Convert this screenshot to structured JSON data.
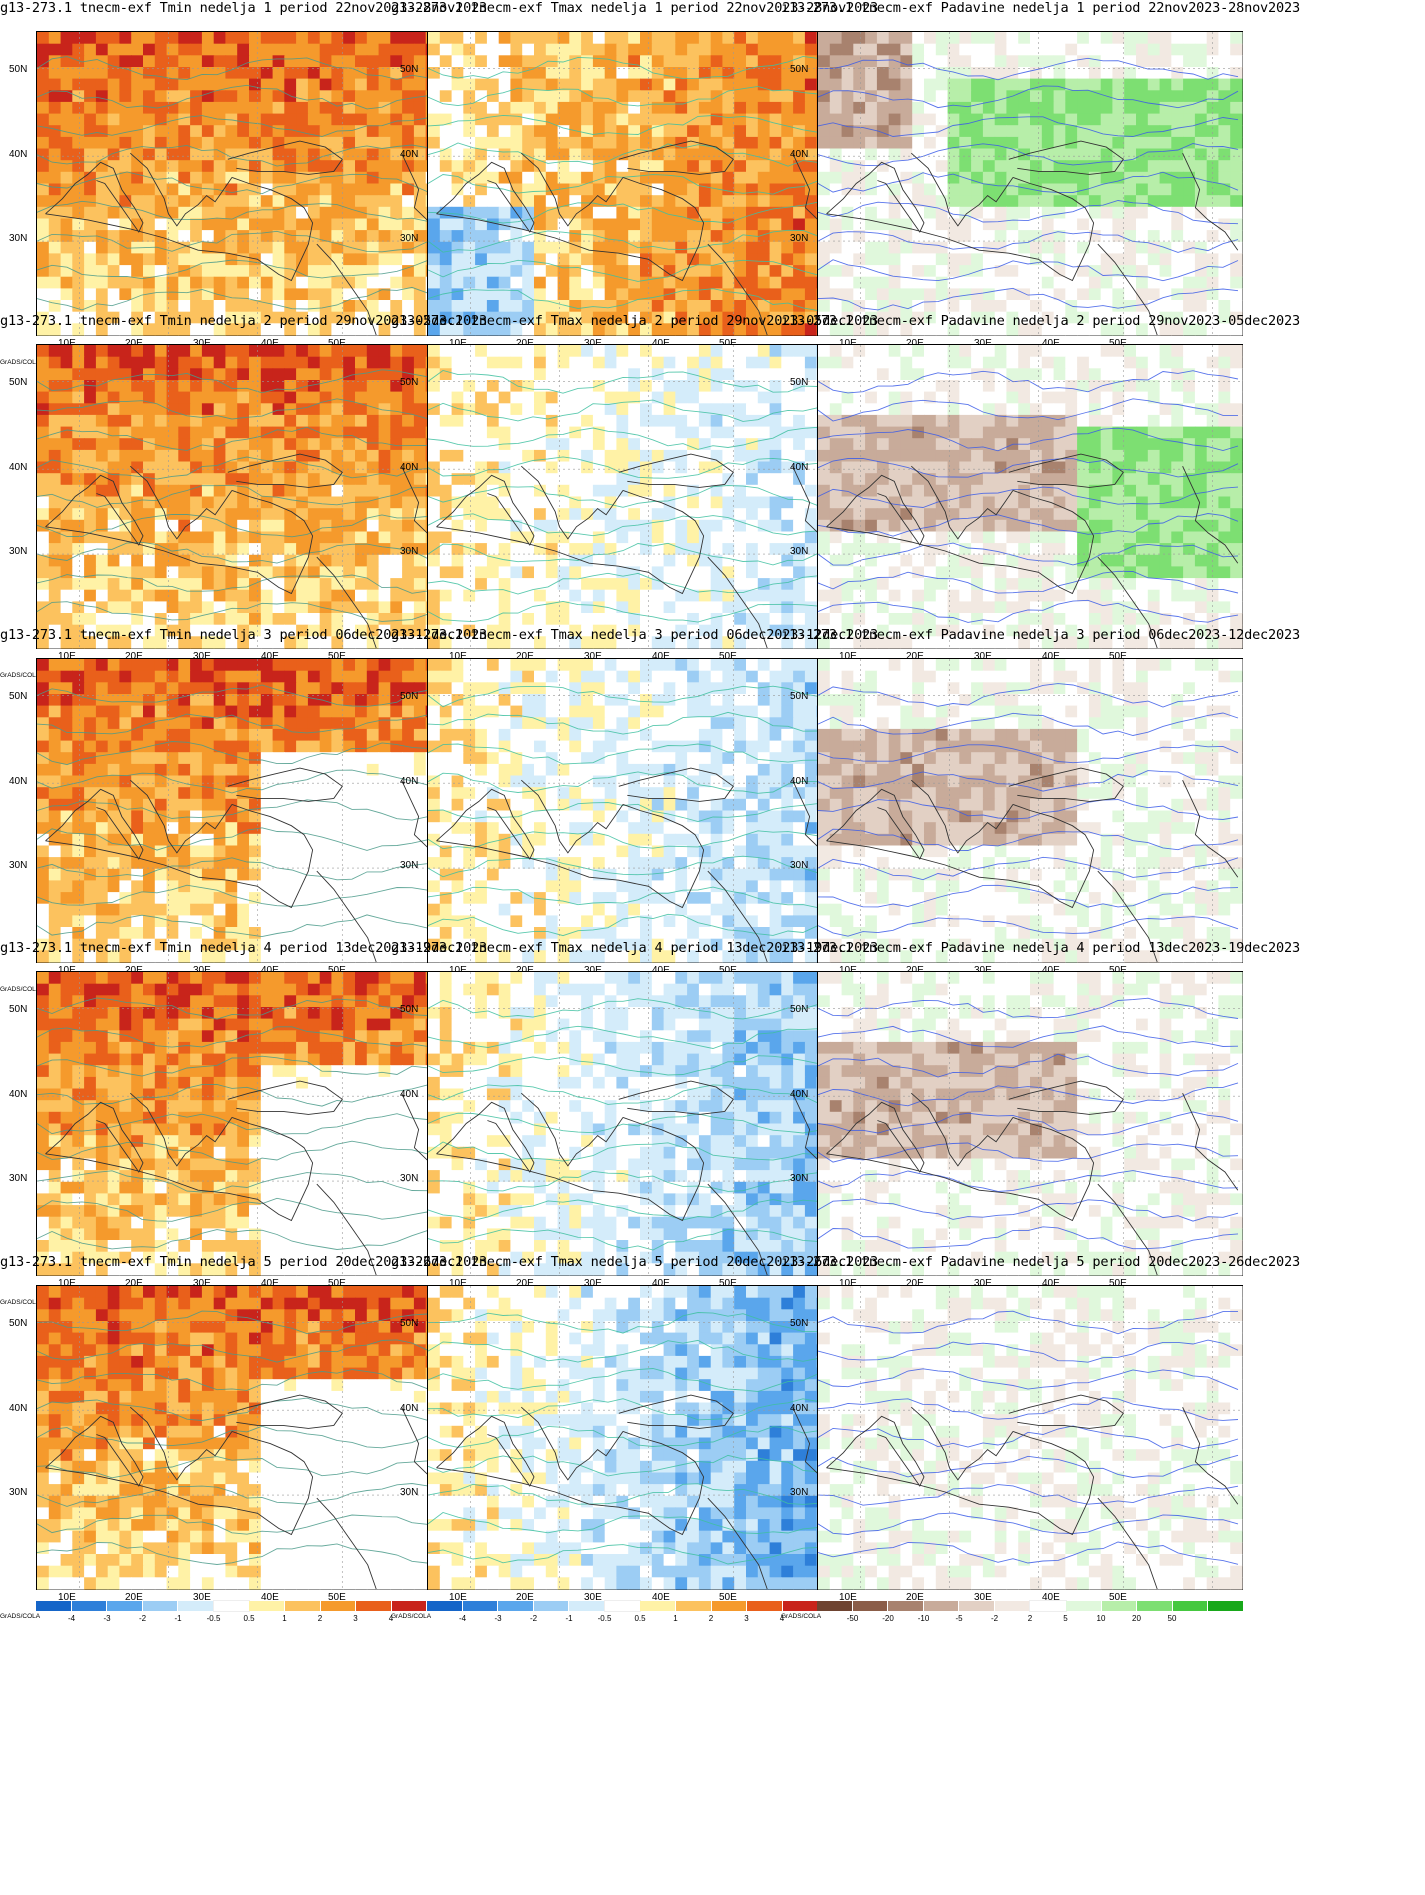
{
  "lat_labels": [
    "50N",
    "40N",
    "30N"
  ],
  "lon_labels": [
    "10E",
    "20E",
    "30E",
    "40E",
    "50E"
  ],
  "watermark": "GrADS/COLA",
  "temp_scale": {
    "labels": [
      "-4",
      "-3",
      "-2",
      "-1",
      "-0.5",
      "0.5",
      "1",
      "2",
      "3",
      "4"
    ],
    "colors": [
      "#1565c8",
      "#2e7fd9",
      "#5aa6ec",
      "#9ccdf4",
      "#d4ecfa",
      "#ffffff",
      "#fff2a6",
      "#fcc25e",
      "#f59a2c",
      "#e9601b",
      "#c8241b",
      "#a30f0f"
    ]
  },
  "precip_scale": {
    "labels": [
      "-50",
      "-20",
      "-10",
      "-5",
      "-2",
      "2",
      "5",
      "10",
      "20",
      "50"
    ],
    "colors": [
      "#6e4330",
      "#8b5d48",
      "#a8826e",
      "#c8ab9a",
      "#e2d0c4",
      "#f2e9e2",
      "#ffffff",
      "#e0f8dc",
      "#b7eea9",
      "#7ddf72",
      "#45c83f",
      "#18a81a"
    ]
  },
  "rows": [
    {
      "tmin_title": "g13-273.1 tnecm-exf Tmin nedelja 1 period 22nov2023-28nov2023",
      "tmax_title": "g13-273.1 tnecm-exf Tmax nedelja 1 period 22nov2023-28nov2023",
      "padavine_title": "ı13-273.1 tnecm-exf Padavine nedelja 1 period 22nov2023-28nov2023"
    },
    {
      "tmin_title": "g13-273.1 tnecm-exf Tmin nedelja 2 period 29nov2023-05dec2023",
      "tmax_title": "g13-273.1 tnecm-exf Tmax nedelja 2 period 29nov2023-05dec2023",
      "padavine_title": "ı13-273.1 tnecm-exf Padavine nedelja 2 period 29nov2023-05dec2023"
    },
    {
      "tmin_title": "g13-273.1 tnecm-exf Tmin nedelja 3 period 06dec2023-12dec2023",
      "tmax_title": "g13-273.1 tnecm-exf Tmax nedelja 3 period 06dec2023-12dec2023",
      "padavine_title": "ı13-273.1 tnecm-exf Padavine nedelja 3 period 06dec2023-12dec2023"
    },
    {
      "tmin_title": "g13-273.1 tnecm-exf Tmin nedelja 4 period 13dec2023-19dec2023",
      "tmax_title": "g13-273.1 tnecm-exf Tmax nedelja 4 period 13dec2023-19dec2023",
      "padavine_title": "ı13-273.1 tnecm-exf Padavine nedelja 4 period 13dec2023-19dec2023"
    },
    {
      "tmin_title": "g13-273.1 tnecm-exf Tmin nedelja 5 period 20dec2023-26dec2023",
      "tmax_title": "g13-273.1 tnecm-exf Tmax nedelja 5 period 20dec2023-26dec2023",
      "padavine_title": "ı13-273.1 tnecm-exf Padavine nedelja 5 period 20dec2023-26dec2023"
    }
  ]
}
